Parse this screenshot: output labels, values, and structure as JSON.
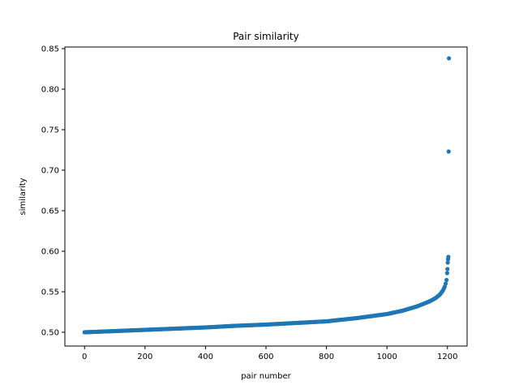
{
  "chart_data": {
    "type": "scatter",
    "title": "Pair similarity",
    "xlabel": "pair number",
    "ylabel": "similarity",
    "xlim": [
      -65,
      1265
    ],
    "ylim": [
      0.483,
      0.852
    ],
    "xticks": [
      0,
      200,
      400,
      600,
      800,
      1000,
      1200
    ],
    "xtick_labels": [
      "0",
      "200",
      "400",
      "600",
      "800",
      "1000",
      "1200"
    ],
    "yticks": [
      0.5,
      0.55,
      0.6,
      0.65,
      0.7,
      0.75,
      0.8,
      0.85
    ],
    "ytick_labels": [
      "0.50",
      "0.55",
      "0.60",
      "0.65",
      "0.70",
      "0.75",
      "0.80",
      "0.85"
    ],
    "grid": false,
    "marker_color": "#1f77b4",
    "curve_anchors": [
      [
        0,
        0.5
      ],
      [
        100,
        0.5015
      ],
      [
        200,
        0.503
      ],
      [
        300,
        0.5045
      ],
      [
        400,
        0.506
      ],
      [
        500,
        0.508
      ],
      [
        600,
        0.5095
      ],
      [
        700,
        0.5115
      ],
      [
        800,
        0.5135
      ],
      [
        900,
        0.5175
      ],
      [
        1000,
        0.5225
      ],
      [
        1050,
        0.5265
      ],
      [
        1100,
        0.532
      ],
      [
        1140,
        0.538
      ],
      [
        1160,
        0.542
      ],
      [
        1175,
        0.5465
      ],
      [
        1185,
        0.5515
      ],
      [
        1192,
        0.557
      ],
      [
        1196,
        0.563
      ],
      [
        1198,
        0.566
      ]
    ],
    "outliers": [
      [
        1199,
        0.573
      ],
      [
        1200,
        0.578
      ],
      [
        1201,
        0.586
      ],
      [
        1202,
        0.59
      ],
      [
        1203,
        0.593
      ],
      [
        1204,
        0.723
      ],
      [
        1205,
        0.838
      ]
    ]
  }
}
